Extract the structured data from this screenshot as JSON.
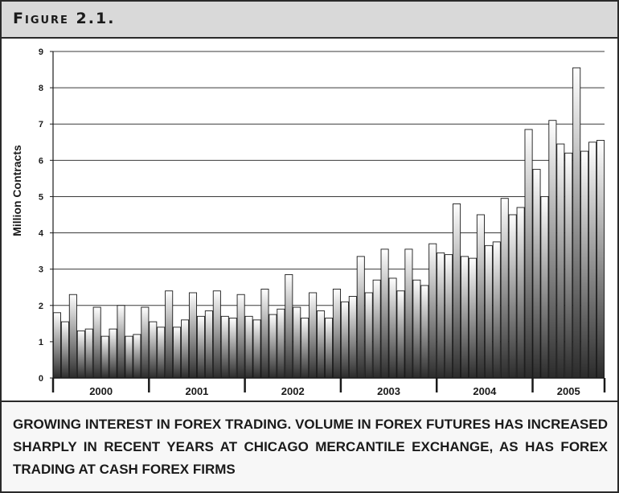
{
  "figure": {
    "label": "Figure 2.1.",
    "caption": "Growing interest in forex trading. Volume in forex futures has increased sharply in recent years at Chicago Mercantile Exchange, as has forex trading at cash forex firms"
  },
  "chart_data": {
    "type": "bar",
    "title": "",
    "xlabel": "",
    "ylabel": "Million Contracts",
    "ylim": [
      0,
      9
    ],
    "yticks": [
      0,
      1,
      2,
      3,
      4,
      5,
      6,
      7,
      8,
      9
    ],
    "grid": true,
    "legend": "none",
    "bar_gradient": [
      "#ffffff",
      "#2b2b2b"
    ],
    "year_labels": [
      "2000",
      "2001",
      "2002",
      "2003",
      "2004",
      "2005"
    ],
    "categories": [
      "2000-01",
      "2000-02",
      "2000-03",
      "2000-04",
      "2000-05",
      "2000-06",
      "2000-07",
      "2000-08",
      "2000-09",
      "2000-10",
      "2000-11",
      "2000-12",
      "2001-01",
      "2001-02",
      "2001-03",
      "2001-04",
      "2001-05",
      "2001-06",
      "2001-07",
      "2001-08",
      "2001-09",
      "2001-10",
      "2001-11",
      "2001-12",
      "2002-01",
      "2002-02",
      "2002-03",
      "2002-04",
      "2002-05",
      "2002-06",
      "2002-07",
      "2002-08",
      "2002-09",
      "2002-10",
      "2002-11",
      "2002-12",
      "2003-01",
      "2003-02",
      "2003-03",
      "2003-04",
      "2003-05",
      "2003-06",
      "2003-07",
      "2003-08",
      "2003-09",
      "2003-10",
      "2003-11",
      "2003-12",
      "2004-01",
      "2004-02",
      "2004-03",
      "2004-04",
      "2004-05",
      "2004-06",
      "2004-07",
      "2004-08",
      "2004-09",
      "2004-10",
      "2004-11",
      "2004-12",
      "2005-01",
      "2005-02",
      "2005-03",
      "2005-04",
      "2005-05",
      "2005-06",
      "2005-07",
      "2005-08",
      "2005-09"
    ],
    "values": [
      1.8,
      1.55,
      2.3,
      1.3,
      1.35,
      1.95,
      1.15,
      1.35,
      2.0,
      1.15,
      1.2,
      1.95,
      1.55,
      1.4,
      2.4,
      1.4,
      1.6,
      2.35,
      1.7,
      1.85,
      2.4,
      1.7,
      1.65,
      2.3,
      1.7,
      1.6,
      2.45,
      1.75,
      1.9,
      2.85,
      1.95,
      1.65,
      2.35,
      1.85,
      1.65,
      2.45,
      2.1,
      2.25,
      3.35,
      2.35,
      2.7,
      3.55,
      2.75,
      2.4,
      3.55,
      2.7,
      2.55,
      3.7,
      3.45,
      3.4,
      4.8,
      3.35,
      3.3,
      4.5,
      3.65,
      3.75,
      4.95,
      4.5,
      4.7,
      6.85,
      5.75,
      5.0,
      7.1,
      6.45,
      6.2,
      8.55,
      6.25,
      6.5,
      6.55
    ]
  }
}
